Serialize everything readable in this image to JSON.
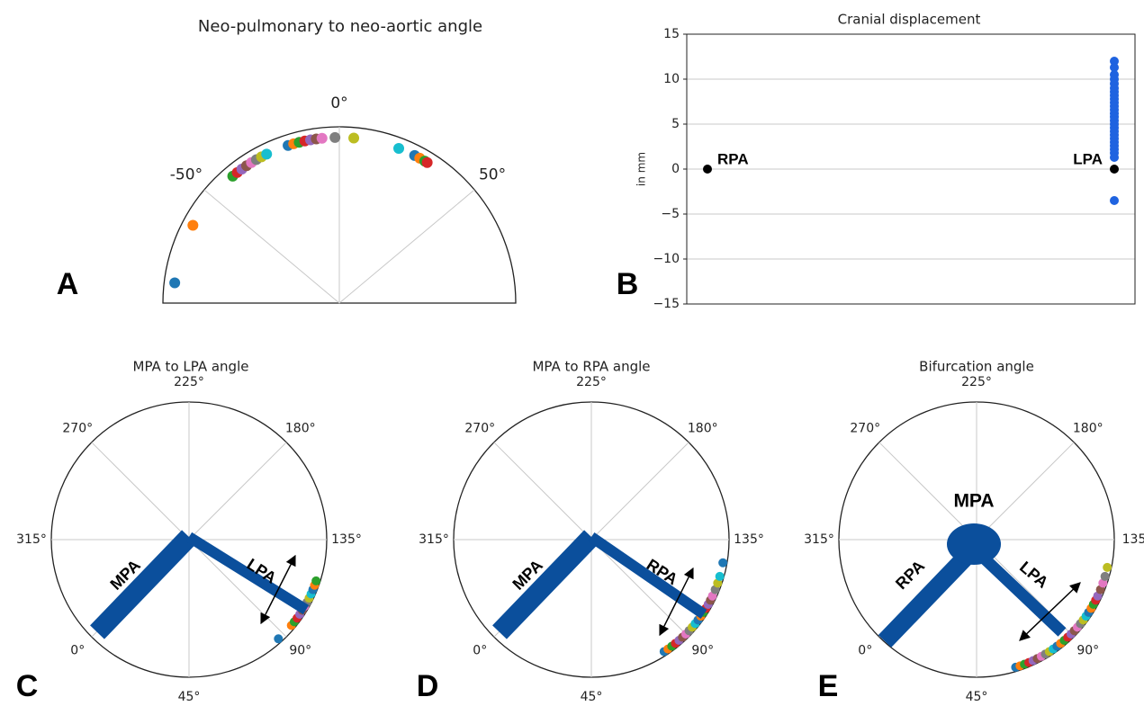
{
  "palette": [
    "#1f77b4",
    "#ff7f0e",
    "#2ca02c",
    "#d62728",
    "#9467bd",
    "#8c564b",
    "#e377c2",
    "#7f7f7f",
    "#bcbd22",
    "#17becf"
  ],
  "chart_data": [
    {
      "type": "polar",
      "panel": "A",
      "title": "Neo-pulmonary to neo-aortic angle",
      "thetalim": [
        -90,
        90
      ],
      "theta_at_top": 0,
      "theta_direction": "clockwise",
      "thetaticks": [
        {
          "value": -50,
          "label": "-50°"
        },
        {
          "value": 0,
          "label": "0°"
        },
        {
          "value": 50,
          "label": "50°"
        }
      ],
      "values": [
        -83,
        -62,
        -40,
        -38,
        -36,
        -34,
        -32,
        -30,
        -28,
        -26,
        -18,
        -16,
        -14,
        -12,
        -10,
        -8,
        -6,
        -1.5,
        5,
        21,
        27,
        29,
        31,
        32
      ]
    },
    {
      "type": "strip",
      "panel": "B",
      "title": "Cranial displacement",
      "y_label": "in mm",
      "categories": [
        "RPA",
        "LPA"
      ],
      "reference_values": [
        0,
        0
      ],
      "reference_color": "#000000",
      "values": [
        12,
        11.3,
        10.5,
        10,
        9.5,
        9,
        8.6,
        8.2,
        7.8,
        7.4,
        7,
        6.6,
        6.2,
        5.8,
        5.4,
        5,
        4.6,
        4.2,
        3.8,
        3.4,
        3,
        2.6,
        2.2,
        1.8,
        1.3,
        -3.5
      ],
      "color": "#1f63e0",
      "ylim": [
        -15,
        15
      ],
      "yticks": [
        {
          "value": -15,
          "label": "−15"
        },
        {
          "value": -10,
          "label": "−10"
        },
        {
          "value": -5,
          "label": "−5"
        },
        0,
        5,
        10,
        15
      ],
      "grid": true
    },
    {
      "type": "polar",
      "panel": "C",
      "title": "MPA to LPA angle",
      "annotations": [
        "MPA",
        "LPA"
      ],
      "thetalim": [
        0,
        360
      ],
      "theta_at_top": 225,
      "theta_direction": "counterclockwise",
      "thetaticks": [
        {
          "value": 225,
          "label": "225°"
        },
        {
          "value": 180,
          "label": "180°"
        },
        {
          "value": 135,
          "label": "135°"
        },
        {
          "value": 90,
          "label": "90°"
        },
        {
          "value": 45,
          "label": "45°"
        },
        {
          "value": 0,
          "label": "0°"
        },
        {
          "value": 315,
          "label": "315°"
        },
        {
          "value": 270,
          "label": "270°"
        }
      ],
      "values": [
        87,
        95,
        97,
        99,
        101,
        103,
        105,
        107,
        109,
        111,
        113,
        115,
        117
      ]
    },
    {
      "type": "polar",
      "panel": "D",
      "title": "MPA to RPA angle",
      "annotations": [
        "MPA",
        "RPA"
      ],
      "thetalim": [
        0,
        360
      ],
      "theta_at_top": 225,
      "theta_direction": "counterclockwise",
      "thetaticks": [
        {
          "value": 225,
          "label": "225°"
        },
        {
          "value": 180,
          "label": "180°"
        },
        {
          "value": 135,
          "label": "135°"
        },
        {
          "value": 90,
          "label": "90°"
        },
        {
          "value": 45,
          "label": "45°"
        },
        {
          "value": 0,
          "label": "0°"
        },
        {
          "value": 315,
          "label": "315°"
        },
        {
          "value": 270,
          "label": "270°"
        }
      ],
      "values": [
        78,
        80,
        82,
        84,
        86,
        88,
        90,
        92,
        94,
        96,
        98,
        100,
        102,
        104,
        106,
        108,
        110,
        113,
        116,
        119,
        125
      ]
    },
    {
      "type": "polar",
      "panel": "E",
      "title": "Bifurcation angle",
      "annotations": [
        "MPA",
        "RPA",
        "LPA"
      ],
      "thetalim": [
        0,
        360
      ],
      "theta_at_top": 225,
      "theta_direction": "counterclockwise",
      "thetaticks": [
        {
          "value": 225,
          "label": "225°"
        },
        {
          "value": 180,
          "label": "180°"
        },
        {
          "value": 135,
          "label": "135"
        },
        {
          "value": 90,
          "label": "90°"
        },
        {
          "value": 45,
          "label": "45°"
        },
        {
          "value": 0,
          "label": "0°"
        },
        {
          "value": 315,
          "label": "315°"
        },
        {
          "value": 270,
          "label": "270°"
        }
      ],
      "values": [
        62,
        64,
        66,
        68,
        70,
        72,
        74,
        76,
        78,
        80,
        82,
        84,
        86,
        88,
        90,
        92,
        94,
        96,
        98,
        100,
        102,
        104,
        106,
        108,
        110,
        113,
        116,
        119,
        123
      ]
    }
  ]
}
